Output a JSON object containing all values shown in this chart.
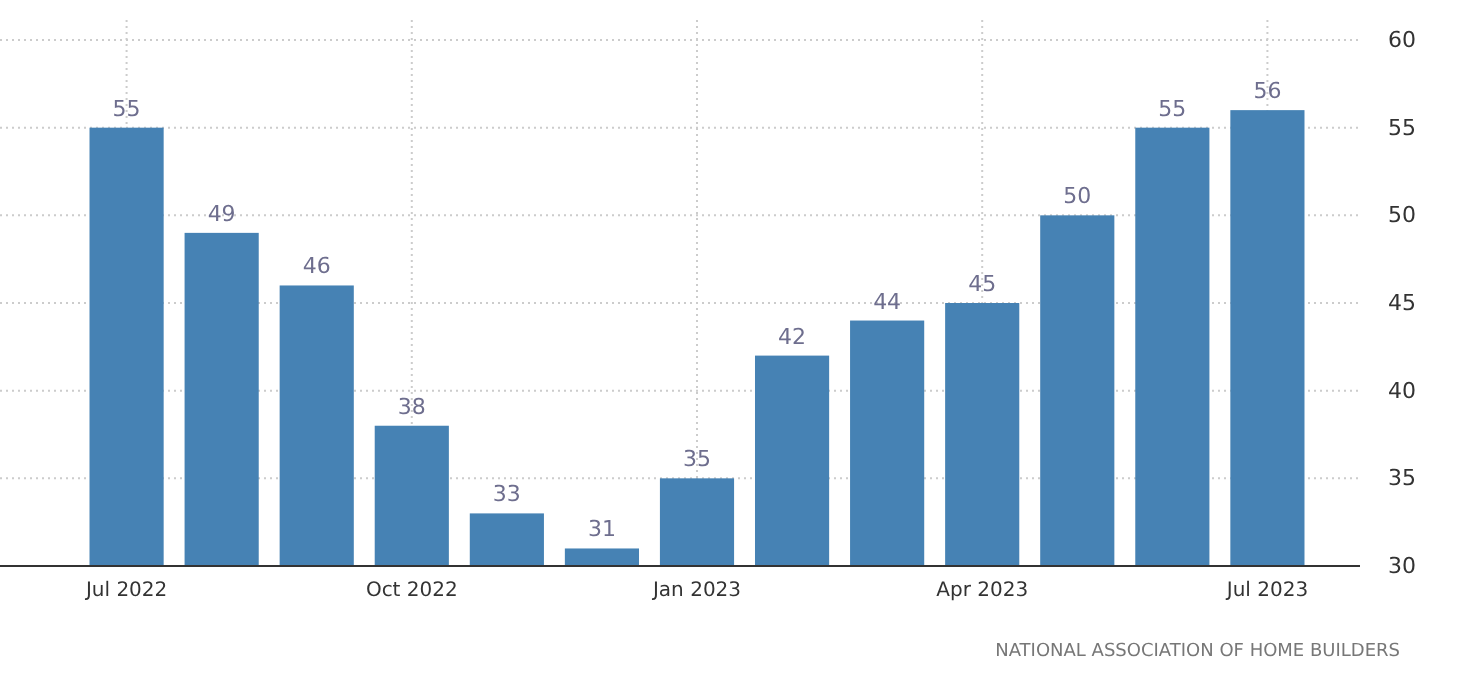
{
  "chart_data": {
    "type": "bar",
    "categories": [
      "Jul 2022",
      null,
      null,
      "Oct 2022",
      null,
      null,
      "Jan 2023",
      null,
      null,
      "Apr 2023",
      null,
      null,
      "Jul 2023"
    ],
    "values": [
      55,
      49,
      46,
      38,
      33,
      31,
      35,
      42,
      44,
      45,
      50,
      55,
      56
    ],
    "color": "#4682b4",
    "ylim": [
      30,
      60
    ],
    "yticks": [
      30,
      35,
      40,
      45,
      50,
      55,
      60
    ],
    "grid": true,
    "data_labels": true,
    "annotations": [
      "NATIONAL ASSOCIATION OF HOME BUILDERS"
    ]
  }
}
